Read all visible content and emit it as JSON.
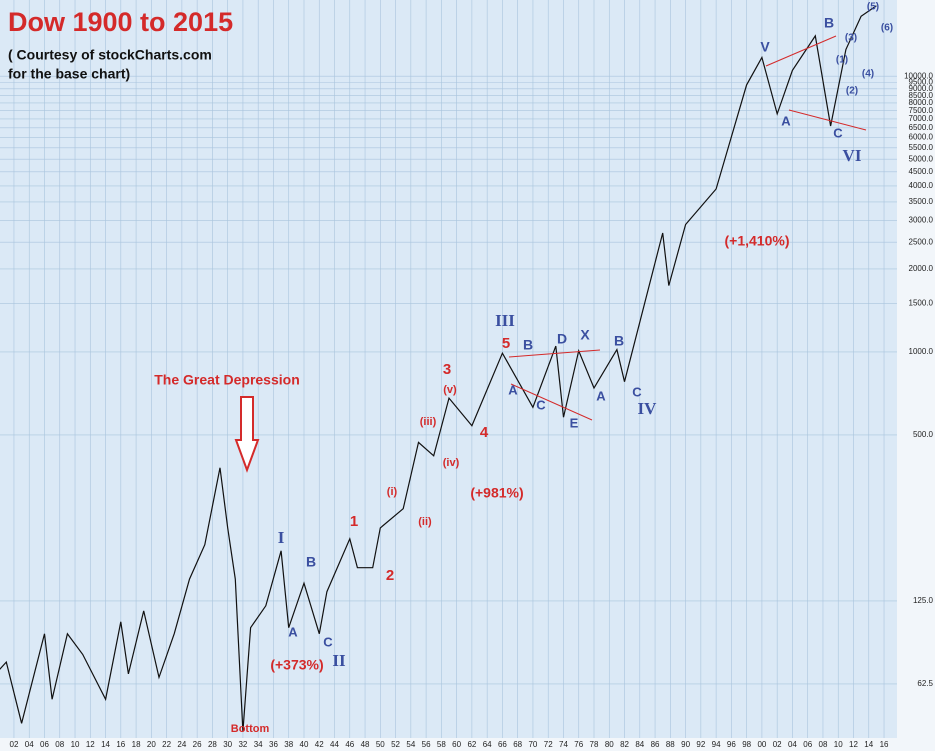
{
  "chart_data": {
    "type": "line",
    "title": "Dow 1900 to 2015",
    "subtitle": [
      "( Courtesy of stockCharts.com",
      "for the base chart)"
    ],
    "log_y": true,
    "grid": true,
    "color": "#111111",
    "x": [
      1900,
      1901,
      1903,
      1906,
      1907,
      1909,
      1911,
      1914,
      1916,
      1917,
      1919,
      1921,
      1923,
      1925,
      1927,
      1929,
      1930,
      1931,
      1932,
      1933,
      1935,
      1937,
      1938,
      1940,
      1942,
      1943,
      1946,
      1947,
      1949,
      1950,
      1953,
      1955,
      1957,
      1959,
      1962,
      1966,
      1970,
      1973,
      1974,
      1976,
      1978,
      1981,
      1982,
      1987,
      1987.8,
      1990,
      1994,
      1998,
      2000,
      2002,
      2004,
      2007,
      2009,
      2011,
      2013,
      2015
    ],
    "values": [
      70,
      75,
      45,
      95,
      55,
      95,
      80,
      55,
      105,
      68,
      115,
      66,
      95,
      150,
      200,
      380,
      230,
      150,
      42,
      100,
      120,
      190,
      100,
      145,
      95,
      135,
      210,
      165,
      165,
      230,
      270,
      470,
      420,
      680,
      540,
      990,
      630,
      1050,
      580,
      1010,
      740,
      1020,
      780,
      2700,
      1740,
      2900,
      3900,
      9300,
      11700,
      7300,
      10500,
      14000,
      6600,
      12500,
      16500,
      18000
    ],
    "xlim": [
      1900.17,
      2017.7
    ],
    "ylim": [
      39.8,
      18900
    ],
    "xticks": [
      {
        "value": 1902,
        "label": "02"
      },
      {
        "value": 1904,
        "label": "04"
      },
      {
        "value": 1906,
        "label": "06"
      },
      {
        "value": 1908,
        "label": "08"
      },
      {
        "value": 1910,
        "label": "10"
      },
      {
        "value": 1912,
        "label": "12"
      },
      {
        "value": 1914,
        "label": "14"
      },
      {
        "value": 1916,
        "label": "16"
      },
      {
        "value": 1918,
        "label": "18"
      },
      {
        "value": 1920,
        "label": "20"
      },
      {
        "value": 1922,
        "label": "22"
      },
      {
        "value": 1924,
        "label": "24"
      },
      {
        "value": 1926,
        "label": "26"
      },
      {
        "value": 1928,
        "label": "28"
      },
      {
        "value": 1930,
        "label": "30"
      },
      {
        "value": 1932,
        "label": "32"
      },
      {
        "value": 1934,
        "label": "34"
      },
      {
        "value": 1936,
        "label": "36"
      },
      {
        "value": 1938,
        "label": "38"
      },
      {
        "value": 1940,
        "label": "40"
      },
      {
        "value": 1942,
        "label": "42"
      },
      {
        "value": 1944,
        "label": "44"
      },
      {
        "value": 1946,
        "label": "46"
      },
      {
        "value": 1948,
        "label": "48"
      },
      {
        "value": 1950,
        "label": "50"
      },
      {
        "value": 1952,
        "label": "52"
      },
      {
        "value": 1954,
        "label": "54"
      },
      {
        "value": 1956,
        "label": "56"
      },
      {
        "value": 1958,
        "label": "58"
      },
      {
        "value": 1960,
        "label": "60"
      },
      {
        "value": 1962,
        "label": "62"
      },
      {
        "value": 1964,
        "label": "64"
      },
      {
        "value": 1966,
        "label": "66"
      },
      {
        "value": 1968,
        "label": "68"
      },
      {
        "value": 1970,
        "label": "70"
      },
      {
        "value": 1972,
        "label": "72"
      },
      {
        "value": 1974,
        "label": "74"
      },
      {
        "value": 1976,
        "label": "76"
      },
      {
        "value": 1978,
        "label": "78"
      },
      {
        "value": 1980,
        "label": "80"
      },
      {
        "value": 1982,
        "label": "82"
      },
      {
        "value": 1984,
        "label": "84"
      },
      {
        "value": 1986,
        "label": "86"
      },
      {
        "value": 1988,
        "label": "88"
      },
      {
        "value": 1990,
        "label": "90"
      },
      {
        "value": 1992,
        "label": "92"
      },
      {
        "value": 1994,
        "label": "94"
      },
      {
        "value": 1996,
        "label": "96"
      },
      {
        "value": 1998,
        "label": "98"
      },
      {
        "value": 2000,
        "label": "00"
      },
      {
        "value": 2002,
        "label": "02"
      },
      {
        "value": 2004,
        "label": "04"
      },
      {
        "value": 2006,
        "label": "06"
      },
      {
        "value": 2008,
        "label": "08"
      },
      {
        "value": 2010,
        "label": "10"
      },
      {
        "value": 2012,
        "label": "12"
      },
      {
        "value": 2014,
        "label": "14"
      },
      {
        "value": 2016,
        "label": "16"
      }
    ],
    "yticks": [
      62.5,
      {
        "value": 125,
        "label": "125.0"
      },
      {
        "value": 500,
        "label": "500.0"
      },
      {
        "value": 1000,
        "label": "1000.0"
      },
      {
        "value": 1500,
        "label": "1500.0"
      },
      {
        "value": 2000,
        "label": "2000.0"
      },
      {
        "value": 2500,
        "label": "2500.0"
      },
      {
        "value": 3000,
        "label": "3000.0"
      },
      {
        "value": 3500,
        "label": "3500.0"
      },
      {
        "value": 4000,
        "label": "4000.0"
      },
      {
        "value": 4500,
        "label": "4500.0"
      },
      {
        "value": 5000,
        "label": "5000.0"
      },
      {
        "value": 5500,
        "label": "5500.0"
      },
      {
        "value": 6000,
        "label": "6000.0"
      },
      {
        "value": 6500,
        "label": "6500.0"
      },
      {
        "value": 7000,
        "label": "7000.0"
      },
      {
        "value": 7500,
        "label": "7500.0"
      },
      {
        "value": 8000,
        "label": "8000.0"
      },
      {
        "value": 8500,
        "label": "8500.0"
      },
      {
        "value": 9000,
        "label": "9000.0"
      },
      {
        "value": 9500,
        "label": "9500.0"
      },
      {
        "value": 10000,
        "label": "10000.0"
      }
    ],
    "annotations": [
      "The Great Depression",
      "Bottom",
      "I",
      "A",
      "B",
      "C",
      "II",
      "(+373%)",
      "1",
      "2",
      "(i)",
      "(ii)",
      "(iii)",
      "(iv)",
      "(v)",
      "3",
      "4",
      "(+981%)",
      "III",
      "5",
      "A",
      "B",
      "C",
      "D",
      "X",
      "E",
      "A",
      "B",
      "C",
      "IV",
      "(+1,410%)",
      "V",
      "A",
      "B",
      "C",
      "VI",
      "(1)",
      "(2)",
      "(3)",
      "(4)",
      "(5)",
      "(6)"
    ]
  }
}
